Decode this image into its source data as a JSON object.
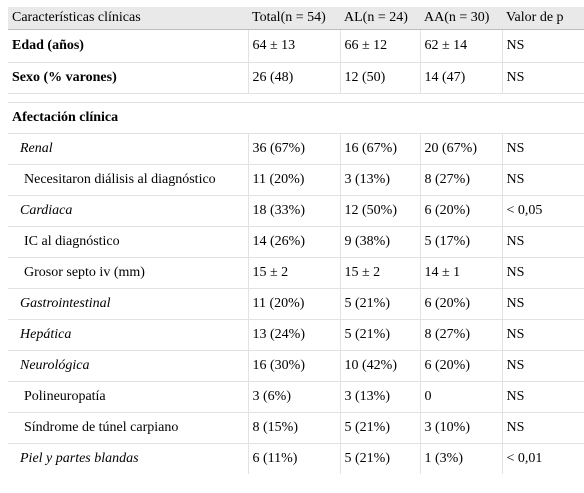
{
  "table": {
    "headers": [
      "Características clínicas",
      "Total(n = 54)",
      "AL(n = 24)",
      "AA(n = 30)",
      "Valor de p"
    ],
    "rows": [
      {
        "cells": [
          "Edad (años)",
          "64 ± 13",
          "66 ± 12",
          "62 ± 14",
          "NS"
        ]
      },
      {
        "cells": [
          "Sexo (% varones)",
          "26 (48)",
          "12 (50)",
          "14 (47)",
          "NS"
        ]
      },
      {
        "section": "Afectación clínica"
      },
      {
        "cells": [
          "Renal",
          "36 (67%)",
          "16 (67%)",
          "20 (67%)",
          "NS"
        ]
      },
      {
        "cells": [
          "Necesitaron diálisis al diagnóstico",
          "11 (20%)",
          "3 (13%)",
          "8 (27%)",
          "NS"
        ]
      },
      {
        "cells": [
          "Cardiaca",
          "18 (33%)",
          "12 (50%)",
          "6 (20%)",
          "< 0,05"
        ]
      },
      {
        "cells": [
          "IC al diagnóstico",
          "14 (26%)",
          "9 (38%)",
          "5 (17%)",
          "NS"
        ]
      },
      {
        "cells": [
          "Grosor septo iv (mm)",
          "15 ± 2",
          "15 ± 2",
          "14 ± 1",
          "NS"
        ]
      },
      {
        "cells": [
          "Gastrointestinal",
          "11 (20%)",
          "5 (21%)",
          "6 (20%)",
          "NS"
        ]
      },
      {
        "cells": [
          "Hepática",
          "13 (24%)",
          "5 (21%)",
          "8 (27%)",
          "NS"
        ]
      },
      {
        "cells": [
          "Neurológica",
          "16 (30%)",
          "10 (42%)",
          "6 (20%)",
          "NS"
        ]
      },
      {
        "cells": [
          "Polineuropatía",
          "3 (6%)",
          "3 (13%)",
          "0",
          "NS"
        ]
      },
      {
        "cells": [
          "Síndrome de túnel carpiano",
          "8 (15%)",
          "5 (21%)",
          "3 (10%)",
          "NS"
        ]
      },
      {
        "cells": [
          "Piel y partes blandas",
          "6 (11%)",
          "5 (21%)",
          "1 (3%)",
          "< 0,01"
        ]
      }
    ]
  }
}
